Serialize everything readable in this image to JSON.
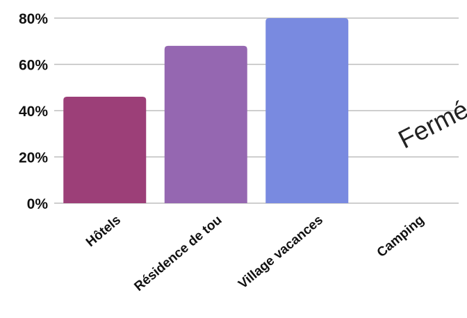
{
  "chart_data": {
    "type": "bar",
    "categories": [
      "Hôtels",
      "Résidence de tou",
      "Village vacances",
      "Camping"
    ],
    "values": [
      46,
      68,
      80,
      null
    ],
    "colors": [
      "#9c3f78",
      "#9567b1",
      "#798ae0",
      "#cccccc"
    ],
    "y_ticks": [
      "0%",
      "20%",
      "40%",
      "60%",
      "80%"
    ],
    "y_tick_values": [
      0,
      20,
      40,
      60,
      80
    ],
    "ylim": [
      0,
      80
    ],
    "grid": true,
    "legend": "none",
    "annotations": [
      {
        "category": "Camping",
        "text": "Fermé"
      }
    ]
  }
}
